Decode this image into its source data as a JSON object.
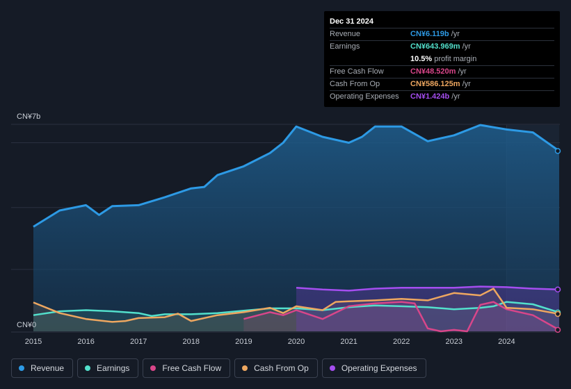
{
  "tooltip": {
    "date": "Dec 31 2024",
    "rows": [
      {
        "label": "Revenue",
        "value": "CN¥6.119b",
        "unit": "/yr",
        "color": "#2d9ae5"
      },
      {
        "label": "Earnings",
        "value": "CN¥643.969m",
        "unit": "/yr",
        "color": "#53e0cc"
      },
      {
        "label": "",
        "value": "10.5%",
        "unit": "profit margin",
        "color": "#ffffff"
      },
      {
        "label": "Free Cash Flow",
        "value": "CN¥48.520m",
        "unit": "/yr",
        "color": "#d9468a"
      },
      {
        "label": "Cash From Op",
        "value": "CN¥586.125m",
        "unit": "/yr",
        "color": "#eea760"
      },
      {
        "label": "Operating Expenses",
        "value": "CN¥1.424b",
        "unit": "/yr",
        "color": "#a54ef0"
      }
    ]
  },
  "legend": [
    {
      "label": "Revenue",
      "color": "#2d9ae5"
    },
    {
      "label": "Earnings",
      "color": "#53e0cc"
    },
    {
      "label": "Free Cash Flow",
      "color": "#d9468a"
    },
    {
      "label": "Cash From Op",
      "color": "#eea760"
    },
    {
      "label": "Operating Expenses",
      "color": "#a54ef0"
    }
  ],
  "chart_data": {
    "type": "area",
    "ylim": [
      0,
      7
    ],
    "y_unit": "CN¥ billions",
    "y_tick_labels": {
      "top": "CN¥7b",
      "bottom": "CN¥0"
    },
    "x_ticks": [
      "2015",
      "2016",
      "2017",
      "2018",
      "2019",
      "2020",
      "2021",
      "2022",
      "2023",
      "2024"
    ],
    "xlim": [
      2015,
      2025
    ],
    "forecast_start": 2024,
    "series": [
      {
        "name": "Revenue",
        "color": "#2d9ae5",
        "points": [
          [
            2015.0,
            3.55
          ],
          [
            2015.5,
            4.1
          ],
          [
            2016.0,
            4.28
          ],
          [
            2016.25,
            3.95
          ],
          [
            2016.5,
            4.25
          ],
          [
            2017.0,
            4.28
          ],
          [
            2017.5,
            4.55
          ],
          [
            2018.0,
            4.85
          ],
          [
            2018.25,
            4.9
          ],
          [
            2018.5,
            5.3
          ],
          [
            2019.0,
            5.6
          ],
          [
            2019.5,
            6.05
          ],
          [
            2019.75,
            6.4
          ],
          [
            2020.0,
            6.95
          ],
          [
            2020.5,
            6.6
          ],
          [
            2021.0,
            6.4
          ],
          [
            2021.25,
            6.6
          ],
          [
            2021.5,
            6.95
          ],
          [
            2022.0,
            6.95
          ],
          [
            2022.5,
            6.45
          ],
          [
            2023.0,
            6.65
          ],
          [
            2023.5,
            7.0
          ],
          [
            2024.0,
            6.85
          ],
          [
            2024.5,
            6.75
          ],
          [
            2025.0,
            6.12
          ]
        ]
      },
      {
        "name": "Earnings",
        "color": "#53e0cc",
        "points": [
          [
            2015.0,
            0.55
          ],
          [
            2015.5,
            0.68
          ],
          [
            2016.0,
            0.72
          ],
          [
            2016.5,
            0.68
          ],
          [
            2017.0,
            0.62
          ],
          [
            2017.25,
            0.52
          ],
          [
            2017.5,
            0.58
          ],
          [
            2018.0,
            0.58
          ],
          [
            2018.5,
            0.62
          ],
          [
            2019.0,
            0.7
          ],
          [
            2019.5,
            0.78
          ],
          [
            2020.0,
            0.78
          ],
          [
            2020.5,
            0.72
          ],
          [
            2021.0,
            0.82
          ],
          [
            2021.5,
            0.88
          ],
          [
            2022.0,
            0.85
          ],
          [
            2022.5,
            0.82
          ],
          [
            2023.0,
            0.75
          ],
          [
            2023.5,
            0.8
          ],
          [
            2023.75,
            0.85
          ],
          [
            2024.0,
            1.0
          ],
          [
            2024.5,
            0.92
          ],
          [
            2025.0,
            0.64
          ]
        ]
      },
      {
        "name": "Free Cash Flow",
        "color": "#d9468a",
        "points": [
          [
            2019.0,
            0.42
          ],
          [
            2019.5,
            0.65
          ],
          [
            2019.75,
            0.55
          ],
          [
            2020.0,
            0.72
          ],
          [
            2020.5,
            0.42
          ],
          [
            2021.0,
            0.85
          ],
          [
            2021.5,
            0.95
          ],
          [
            2022.0,
            1.0
          ],
          [
            2022.25,
            0.95
          ],
          [
            2022.5,
            0.1
          ],
          [
            2022.75,
            0.0
          ],
          [
            2023.0,
            0.05
          ],
          [
            2023.25,
            0.0
          ],
          [
            2023.5,
            0.9
          ],
          [
            2023.75,
            1.0
          ],
          [
            2024.0,
            0.75
          ],
          [
            2024.5,
            0.55
          ],
          [
            2025.0,
            0.05
          ]
        ]
      },
      {
        "name": "Cash From Op",
        "color": "#eea760",
        "points": [
          [
            2015.0,
            0.98
          ],
          [
            2015.5,
            0.62
          ],
          [
            2016.0,
            0.42
          ],
          [
            2016.5,
            0.32
          ],
          [
            2016.75,
            0.35
          ],
          [
            2017.0,
            0.45
          ],
          [
            2017.5,
            0.48
          ],
          [
            2017.75,
            0.6
          ],
          [
            2018.0,
            0.35
          ],
          [
            2018.5,
            0.55
          ],
          [
            2019.0,
            0.65
          ],
          [
            2019.5,
            0.8
          ],
          [
            2019.75,
            0.62
          ],
          [
            2020.0,
            0.85
          ],
          [
            2020.5,
            0.72
          ],
          [
            2020.75,
            1.0
          ],
          [
            2021.0,
            1.02
          ],
          [
            2021.5,
            1.05
          ],
          [
            2022.0,
            1.1
          ],
          [
            2022.5,
            1.05
          ],
          [
            2023.0,
            1.3
          ],
          [
            2023.5,
            1.22
          ],
          [
            2023.75,
            1.45
          ],
          [
            2024.0,
            0.8
          ],
          [
            2024.5,
            0.75
          ],
          [
            2025.0,
            0.59
          ]
        ]
      },
      {
        "name": "Operating Expenses",
        "color": "#a54ef0",
        "points": [
          [
            2020.0,
            1.48
          ],
          [
            2020.5,
            1.42
          ],
          [
            2021.0,
            1.38
          ],
          [
            2021.5,
            1.45
          ],
          [
            2022.0,
            1.48
          ],
          [
            2022.5,
            1.48
          ],
          [
            2023.0,
            1.48
          ],
          [
            2023.5,
            1.52
          ],
          [
            2024.0,
            1.5
          ],
          [
            2024.5,
            1.45
          ],
          [
            2025.0,
            1.42
          ]
        ]
      }
    ]
  }
}
